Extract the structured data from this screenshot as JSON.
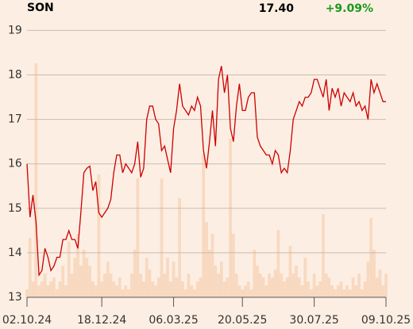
{
  "header": {
    "ticker": "SON",
    "price": "17.40",
    "change": "+9.09%"
  },
  "chart_data": {
    "type": "line",
    "categories": [
      "02.10.24",
      null,
      null,
      null,
      null,
      null,
      null,
      null,
      null,
      null,
      null,
      null,
      null,
      null,
      null,
      null,
      null,
      null,
      null,
      null,
      null,
      null,
      null,
      null,
      null,
      "18.12.24",
      null,
      null,
      null,
      null,
      null,
      null,
      null,
      null,
      null,
      null,
      null,
      null,
      null,
      null,
      null,
      null,
      null,
      null,
      null,
      null,
      null,
      null,
      null,
      "06.03.25",
      null,
      null,
      null,
      null,
      null,
      null,
      null,
      null,
      null,
      null,
      null,
      null,
      null,
      null,
      null,
      null,
      null,
      null,
      null,
      null,
      null,
      null,
      "20.05.25",
      null,
      null,
      null,
      null,
      null,
      null,
      null,
      null,
      null,
      null,
      null,
      null,
      null,
      null,
      null,
      null,
      null,
      null,
      null,
      null,
      null,
      null,
      null,
      "30.07.25",
      null,
      null,
      null,
      null,
      null,
      null,
      null,
      null,
      null,
      null,
      null,
      null,
      null,
      null,
      null,
      null,
      null,
      null,
      null,
      null,
      null,
      null,
      null,
      "09.10.25"
    ],
    "values": [
      16.0,
      14.8,
      15.3,
      14.7,
      13.5,
      13.6,
      14.1,
      13.9,
      13.6,
      13.7,
      13.9,
      13.9,
      14.3,
      14.3,
      14.5,
      14.3,
      14.3,
      14.1,
      14.9,
      15.8,
      15.9,
      15.95,
      15.4,
      15.6,
      14.9,
      14.8,
      14.9,
      15.0,
      15.2,
      15.8,
      16.2,
      16.2,
      15.8,
      16.0,
      15.9,
      15.8,
      16.0,
      16.5,
      15.7,
      15.9,
      17.0,
      17.3,
      17.3,
      17.0,
      16.9,
      16.3,
      16.4,
      16.1,
      15.8,
      16.8,
      17.2,
      17.8,
      17.3,
      17.2,
      17.1,
      17.3,
      17.2,
      17.5,
      17.3,
      16.3,
      15.9,
      16.5,
      17.2,
      16.4,
      17.9,
      18.2,
      17.6,
      18.0,
      16.8,
      16.5,
      17.3,
      17.8,
      17.2,
      17.2,
      17.5,
      17.6,
      17.6,
      16.6,
      16.4,
      16.3,
      16.2,
      16.2,
      16.0,
      16.3,
      16.2,
      15.8,
      15.9,
      15.8,
      16.3,
      17.0,
      17.2,
      17.4,
      17.3,
      17.5,
      17.5,
      17.6,
      17.9,
      17.9,
      17.7,
      17.5,
      17.9,
      17.2,
      17.7,
      17.5,
      17.7,
      17.3,
      17.6,
      17.5,
      17.4,
      17.6,
      17.3,
      17.4,
      17.2,
      17.3,
      17.0,
      17.9,
      17.6,
      17.8,
      17.6,
      17.4,
      17.4
    ],
    "volume": [
      10,
      75,
      20,
      295,
      15,
      20,
      30,
      15,
      20,
      25,
      10,
      20,
      40,
      15,
      70,
      30,
      50,
      80,
      40,
      60,
      50,
      40,
      20,
      15,
      155,
      20,
      30,
      45,
      30,
      20,
      15,
      25,
      10,
      15,
      10,
      30,
      60,
      150,
      30,
      20,
      50,
      35,
      20,
      15,
      25,
      150,
      30,
      50,
      20,
      45,
      25,
      125,
      20,
      10,
      30,
      15,
      10,
      20,
      25,
      180,
      95,
      60,
      80,
      40,
      30,
      45,
      20,
      25,
      200,
      80,
      30,
      15,
      10,
      15,
      20,
      10,
      60,
      40,
      30,
      25,
      15,
      30,
      25,
      35,
      85,
      30,
      20,
      25,
      65,
      30,
      40,
      25,
      15,
      50,
      20,
      10,
      30,
      15,
      20,
      105,
      30,
      25,
      15,
      10,
      15,
      20,
      10,
      15,
      10,
      25,
      15,
      30,
      10,
      20,
      45,
      100,
      60,
      25,
      35,
      15,
      30
    ],
    "color": "#cc0000",
    "volume_color": "#f8d9c0",
    "ylim": [
      13,
      19.15
    ],
    "yticks": [
      13,
      14,
      15,
      16,
      17,
      18,
      19
    ],
    "grid": true
  }
}
